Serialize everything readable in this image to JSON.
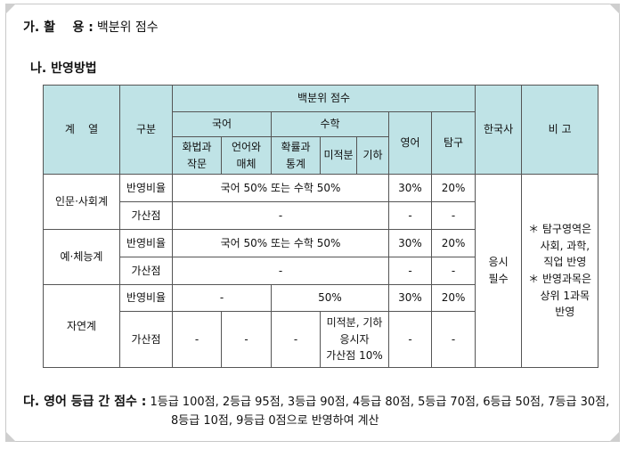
{
  "section_a": {
    "label": "가. 활    용 :",
    "value": "백분위 점수"
  },
  "section_b": {
    "heading": "나. 반영방법"
  },
  "table": {
    "h_category": "계    열",
    "h_type": "구분",
    "h_percentile": "백분위 점수",
    "h_korean": "국어",
    "h_math": "수학",
    "h_english": "영어",
    "h_inquiry": "탐구",
    "h_history": "한국사",
    "h_remarks": "비 고",
    "sub_hwabeop": "화법과\n작문",
    "sub_eoneo": "언어와\n매체",
    "sub_hwakryul": "확률과\n통계",
    "sub_mijeok": "미적분",
    "sub_giha": "기하",
    "cat_humanities": "인문·사회계",
    "cat_arts": "예·체능계",
    "cat_science": "자연계",
    "row_ratio": "반영비율",
    "row_bonus": "가산점",
    "ratio_korean_or_math": "국어 50% 또는 수학 50%",
    "pct_30": "30%",
    "pct_20": "20%",
    "pct_50": "50%",
    "dash": "-",
    "science_bonus_math": "미적분, 기하\n응시자\n가산점 10%",
    "history_value": "응시\n필수",
    "remarks": "＊ 탐구영역은\n   사회, 과학,\n   직업 반영\n＊ 반영과목은\n   상위 1과목\n   반영"
  },
  "section_c": {
    "label": "다. 영어 등급 간 점수 :",
    "line1": "1등급 100점, 2등급 95점, 3등급 90점, 4등급 80점, 5등급 70점, 6등급 50점, 7등급 30점,",
    "line2": "8등급 10점, 9등급 0점으로 반영하여 계산"
  }
}
